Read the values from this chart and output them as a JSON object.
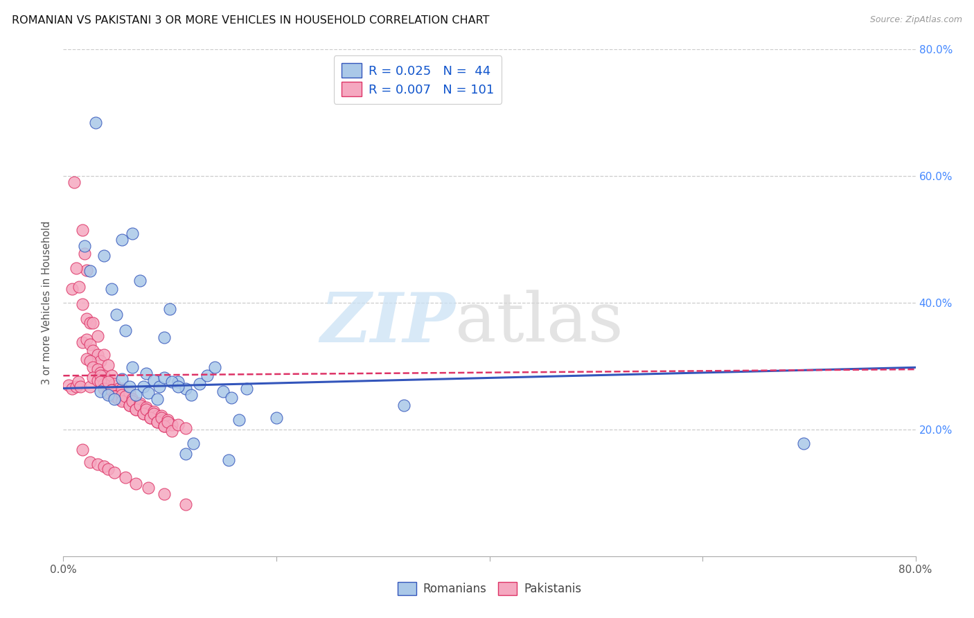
{
  "title": "ROMANIAN VS PAKISTANI 3 OR MORE VEHICLES IN HOUSEHOLD CORRELATION CHART",
  "source": "Source: ZipAtlas.com",
  "ylabel": "3 or more Vehicles in Household",
  "xlim": [
    0.0,
    0.8
  ],
  "ylim": [
    0.0,
    0.8
  ],
  "xtick_labels": [
    "0.0%",
    "",
    "",
    "",
    "80.0%"
  ],
  "xtick_vals": [
    0.0,
    0.2,
    0.4,
    0.6,
    0.8
  ],
  "ytick_right_labels": [
    "20.0%",
    "40.0%",
    "60.0%",
    "80.0%"
  ],
  "ytick_right_vals": [
    0.2,
    0.4,
    0.6,
    0.8
  ],
  "legend_r_romanian": "R = 0.025",
  "legend_n_romanian": "N =  44",
  "legend_r_pakistani": "R = 0.007",
  "legend_n_pakistani": "N = 101",
  "romanian_color": "#aac8e8",
  "pakistani_color": "#f5a8c0",
  "trend_romanian_color": "#3355bb",
  "trend_pakistani_color": "#dd3366",
  "background_color": "#ffffff",
  "grid_color": "#cccccc",
  "romanian_x": [
    0.03,
    0.055,
    0.02,
    0.025,
    0.038,
    0.045,
    0.05,
    0.058,
    0.065,
    0.072,
    0.078,
    0.085,
    0.09,
    0.095,
    0.1,
    0.108,
    0.115,
    0.12,
    0.128,
    0.135,
    0.142,
    0.15,
    0.158,
    0.165,
    0.172,
    0.035,
    0.042,
    0.048,
    0.055,
    0.062,
    0.068,
    0.075,
    0.08,
    0.088,
    0.095,
    0.102,
    0.108,
    0.115,
    0.122,
    0.065,
    0.155,
    0.2,
    0.32,
    0.695
  ],
  "romanian_y": [
    0.685,
    0.5,
    0.49,
    0.45,
    0.475,
    0.422,
    0.382,
    0.356,
    0.298,
    0.435,
    0.288,
    0.278,
    0.268,
    0.345,
    0.39,
    0.275,
    0.265,
    0.255,
    0.272,
    0.285,
    0.298,
    0.26,
    0.25,
    0.215,
    0.265,
    0.26,
    0.255,
    0.248,
    0.28,
    0.268,
    0.255,
    0.268,
    0.258,
    0.248,
    0.282,
    0.275,
    0.268,
    0.162,
    0.178,
    0.51,
    0.152,
    0.218,
    0.238,
    0.178
  ],
  "pakistani_x": [
    0.005,
    0.008,
    0.01,
    0.012,
    0.014,
    0.016,
    0.018,
    0.02,
    0.022,
    0.025,
    0.008,
    0.012,
    0.015,
    0.018,
    0.022,
    0.025,
    0.028,
    0.032,
    0.018,
    0.022,
    0.025,
    0.028,
    0.032,
    0.035,
    0.038,
    0.022,
    0.025,
    0.028,
    0.032,
    0.035,
    0.038,
    0.042,
    0.028,
    0.032,
    0.035,
    0.038,
    0.042,
    0.045,
    0.048,
    0.035,
    0.038,
    0.042,
    0.045,
    0.048,
    0.052,
    0.042,
    0.045,
    0.048,
    0.052,
    0.055,
    0.048,
    0.052,
    0.055,
    0.058,
    0.062,
    0.055,
    0.058,
    0.062,
    0.065,
    0.068,
    0.062,
    0.065,
    0.068,
    0.072,
    0.075,
    0.068,
    0.072,
    0.075,
    0.078,
    0.082,
    0.075,
    0.078,
    0.082,
    0.085,
    0.088,
    0.082,
    0.085,
    0.088,
    0.092,
    0.095,
    0.088,
    0.092,
    0.095,
    0.098,
    0.102,
    0.095,
    0.098,
    0.102,
    0.108,
    0.115,
    0.018,
    0.025,
    0.032,
    0.038,
    0.042,
    0.048,
    0.058,
    0.068,
    0.08,
    0.095,
    0.115
  ],
  "pakistani_y": [
    0.27,
    0.265,
    0.59,
    0.268,
    0.275,
    0.268,
    0.515,
    0.478,
    0.452,
    0.268,
    0.422,
    0.455,
    0.425,
    0.398,
    0.375,
    0.368,
    0.368,
    0.348,
    0.338,
    0.342,
    0.335,
    0.325,
    0.318,
    0.308,
    0.318,
    0.312,
    0.308,
    0.298,
    0.295,
    0.29,
    0.285,
    0.302,
    0.282,
    0.278,
    0.285,
    0.272,
    0.278,
    0.285,
    0.272,
    0.275,
    0.265,
    0.275,
    0.262,
    0.258,
    0.265,
    0.258,
    0.262,
    0.252,
    0.255,
    0.265,
    0.252,
    0.248,
    0.255,
    0.245,
    0.258,
    0.245,
    0.252,
    0.238,
    0.248,
    0.242,
    0.238,
    0.245,
    0.232,
    0.242,
    0.235,
    0.232,
    0.238,
    0.225,
    0.235,
    0.228,
    0.225,
    0.232,
    0.218,
    0.228,
    0.222,
    0.218,
    0.225,
    0.212,
    0.222,
    0.215,
    0.212,
    0.218,
    0.205,
    0.215,
    0.208,
    0.205,
    0.212,
    0.198,
    0.208,
    0.202,
    0.168,
    0.148,
    0.145,
    0.142,
    0.138,
    0.132,
    0.125,
    0.115,
    0.108,
    0.098,
    0.082
  ]
}
